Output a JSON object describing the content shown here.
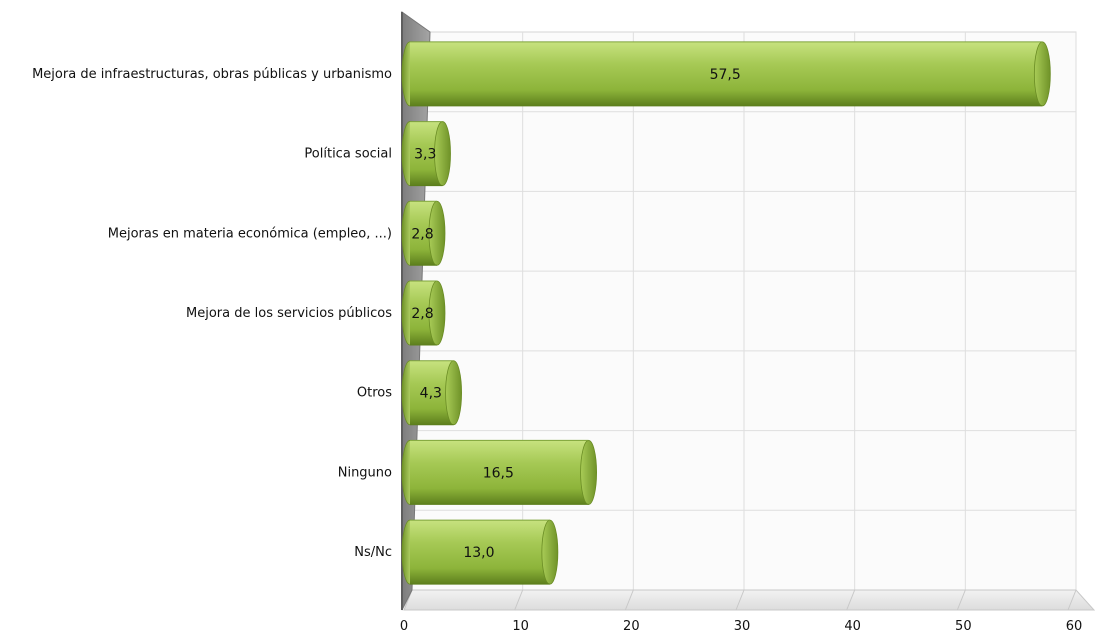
{
  "chart_data": {
    "type": "bar",
    "orientation": "horizontal",
    "categories": [
      "Mejora de infraestructuras, obras públicas y urbanismo",
      "Política social",
      "Mejoras en materia económica (empleo, ...)",
      "Mejora de los servicios públicos",
      "Otros",
      "Ninguno",
      "Ns/Nc"
    ],
    "values": [
      57.5,
      3.3,
      2.8,
      2.8,
      4.3,
      16.5,
      13.0
    ],
    "value_labels": [
      "57,5",
      "3,3",
      "2,8",
      "2,8",
      "4,3",
      "16,5",
      "13,0"
    ],
    "xlim": [
      0,
      60
    ],
    "xticks": [
      0,
      10,
      20,
      30,
      40,
      50,
      60
    ],
    "xtick_labels": [
      "0",
      "10",
      "20",
      "30",
      "40",
      "50",
      "60"
    ],
    "grid": true,
    "colors": {
      "bar": "#8db43a",
      "bar_light": "#c7e27f",
      "bar_dark": "#5d7f1d",
      "wall": "#9a9a9a",
      "floor": "#e9e9e9",
      "grid": "#dedede"
    }
  }
}
